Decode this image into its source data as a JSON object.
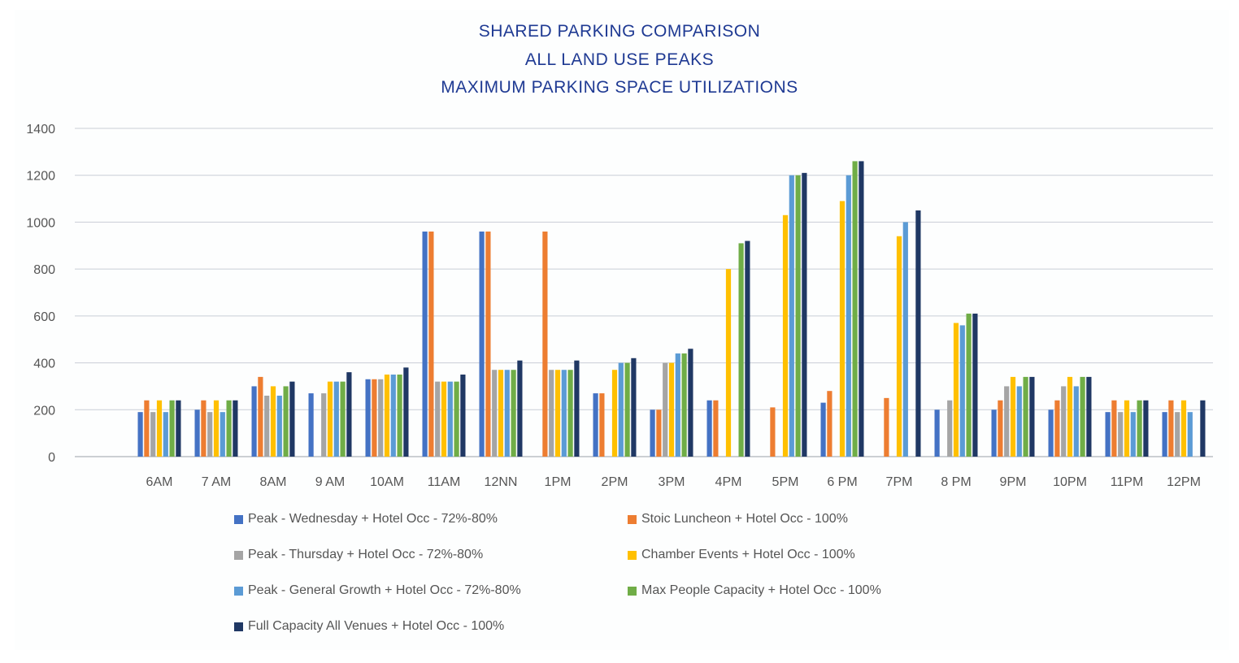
{
  "chart_data": {
    "type": "bar",
    "title_lines": [
      "SHARED PARKING COMPARISON",
      "ALL LAND USE PEAKS",
      "MAXIMUM PARKING SPACE UTILIZATIONS"
    ],
    "xlabel": "",
    "ylabel": "",
    "ylim": [
      0,
      1400
    ],
    "yticks": [
      0,
      200,
      400,
      600,
      800,
      1000,
      1200,
      1400
    ],
    "ytick_labels": [
      "0",
      "200",
      "400",
      "600",
      "800",
      "1000",
      "1200",
      "1400"
    ],
    "grid": true,
    "legend_position": "bottom",
    "categories": [
      "6AM",
      "7 AM",
      "8AM",
      "9 AM",
      "10AM",
      "11AM",
      "12NN",
      "1PM",
      "2PM",
      "3PM",
      "4PM",
      "5PM",
      "6 PM",
      "7PM",
      "8 PM",
      "9PM",
      "10PM",
      "11PM",
      "12PM"
    ],
    "series": [
      {
        "name": "Peak - Wednesday",
        "note": "Hotel Occ - 72%-80%",
        "color": "#4472c4",
        "values": [
          190,
          200,
          300,
          270,
          330,
          960,
          960,
          0,
          270,
          200,
          240,
          0,
          230,
          0,
          200,
          200,
          200,
          190,
          190
        ]
      },
      {
        "name": "Stoic Luncheon",
        "note": "Hotel Occ - 100%",
        "color": "#ed7d31",
        "values": [
          240,
          240,
          340,
          0,
          330,
          960,
          960,
          960,
          270,
          200,
          240,
          210,
          280,
          250,
          0,
          240,
          240,
          240,
          240
        ]
      },
      {
        "name": "Peak - Thursday",
        "note": "Hotel Occ - 72%-80%",
        "color": "#a5a5a5",
        "values": [
          190,
          190,
          260,
          270,
          330,
          320,
          370,
          370,
          0,
          400,
          0,
          0,
          0,
          0,
          240,
          300,
          300,
          190,
          190
        ]
      },
      {
        "name": "Chamber Events",
        "note": "Hotel Occ - 100%",
        "color": "#ffc000",
        "values": [
          240,
          240,
          300,
          320,
          350,
          320,
          370,
          370,
          370,
          400,
          800,
          1030,
          1090,
          940,
          570,
          340,
          340,
          240,
          240
        ]
      },
      {
        "name": "Peak - General Growth",
        "note": "Hotel Occ - 72%-80%",
        "color": "#5b9bd5",
        "values": [
          190,
          190,
          260,
          320,
          350,
          320,
          370,
          370,
          400,
          440,
          0,
          1200,
          1200,
          1000,
          560,
          300,
          300,
          190,
          190
        ]
      },
      {
        "name": "Max People Capacity",
        "note": "Hotel Occ - 100%",
        "color": "#70ad47",
        "values": [
          240,
          240,
          300,
          320,
          350,
          320,
          370,
          370,
          400,
          440,
          910,
          1200,
          1260,
          0,
          610,
          340,
          340,
          240,
          0
        ]
      },
      {
        "name": "Full Capacity All Venues",
        "note": "Hotel Occ - 100%",
        "color": "#203864",
        "values": [
          240,
          240,
          320,
          360,
          380,
          350,
          410,
          410,
          420,
          460,
          920,
          1210,
          1260,
          1050,
          610,
          340,
          340,
          240,
          240
        ]
      }
    ],
    "legend_lines": [
      "Peak - Wednesday  + Hotel Occ - 72%-80%",
      "Stoic Luncheon  + Hotel Occ - 100%",
      "Peak - Thursday  + Hotel Occ - 72%-80%",
      "Chamber Events  + Hotel Occ - 100%",
      "Peak - General Growth  + Hotel Occ - 72%-80%",
      "Max People Capacity  + Hotel Occ - 100%",
      "Full Capacity All Venues  + Hotel Occ - 100%"
    ]
  }
}
